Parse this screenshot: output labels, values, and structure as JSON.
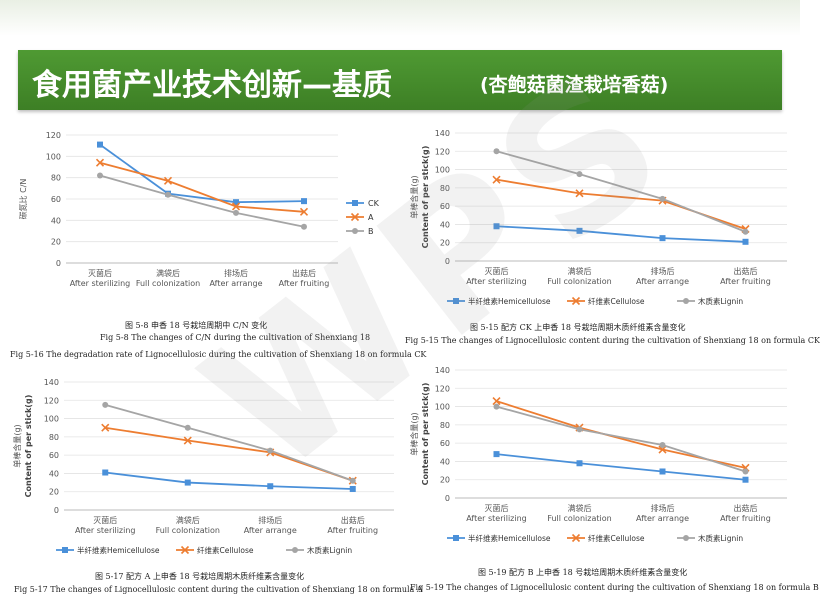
{
  "header": {
    "title_main": "食用菌产业技术创新—基质",
    "title_sub": "(杏鲍菇菌渣栽培香菇)"
  },
  "colors": {
    "banner": "#4a9230",
    "hemicellulose": "#4a90d9",
    "cellulose": "#ed7d31",
    "lignin": "#a5a5a5"
  },
  "watermark": "WPS",
  "chart_data": [
    {
      "id": "cn",
      "type": "line",
      "categories": [
        {
          "cn": "灭菌后",
          "en": "After sterilizing"
        },
        {
          "cn": "满袋后",
          "en": "Full colonization"
        },
        {
          "cn": "排场后",
          "en": "After arrange"
        },
        {
          "cn": "出菇后",
          "en": "After fruiting"
        }
      ],
      "ylabel": "碳氮比 C/N",
      "ylim": [
        0,
        120
      ],
      "yticks": [
        0,
        20,
        40,
        60,
        80,
        100,
        120
      ],
      "legend_position": "right",
      "series": [
        {
          "name": "CK",
          "color": "#4a90d9",
          "marker": "square",
          "values": [
            111,
            65,
            57,
            58
          ]
        },
        {
          "name": "A",
          "color": "#ed7d31",
          "marker": "x",
          "values": [
            94,
            77,
            53,
            48
          ]
        },
        {
          "name": "B",
          "color": "#a5a5a5",
          "marker": "circle",
          "values": [
            82,
            64,
            47,
            34
          ]
        }
      ],
      "caption_cn": "图 5-8 申香 18 号栽培周期中 C/N 变化",
      "caption_en": "Fig 5-8 The changes of C/N during the cultivation of Shenxiang 18",
      "caption_extra": "Fig 5-16 The degradation rate of Lignocellulosic during the cultivation of Shenxiang 18 on formula CK"
    },
    {
      "id": "ck",
      "type": "line",
      "categories": [
        {
          "cn": "灭菌后",
          "en": "After sterilizing"
        },
        {
          "cn": "满袋后",
          "en": "Full colonization"
        },
        {
          "cn": "排场后",
          "en": "After arrange"
        },
        {
          "cn": "出菇后",
          "en": "After fruiting"
        }
      ],
      "ylabel_cn": "单棒含量(g)",
      "ylabel_en": "Content of per stick(g)",
      "ylim": [
        0,
        140
      ],
      "yticks": [
        0,
        20,
        40,
        60,
        80,
        100,
        120,
        140
      ],
      "legend_position": "bottom",
      "series": [
        {
          "name": "半纤维素Hemicellulose",
          "color": "#4a90d9",
          "marker": "square",
          "values": [
            38,
            33,
            25,
            21
          ]
        },
        {
          "name": "纤维素Cellulose",
          "color": "#ed7d31",
          "marker": "x",
          "values": [
            89,
            74,
            66,
            35
          ]
        },
        {
          "name": "木质素Lignin",
          "color": "#a5a5a5",
          "marker": "circle",
          "values": [
            120,
            95,
            68,
            32
          ]
        }
      ],
      "caption_cn": "图 5-15 配方 CK 上申香 18 号栽培周期木质纤维素含量变化",
      "caption_en": "Fig 5-15 The changes of Lignocellulosic content during the cultivation of Shenxiang 18 on formula CK"
    },
    {
      "id": "a",
      "type": "line",
      "categories": [
        {
          "cn": "灭菌后",
          "en": "After sterilizing"
        },
        {
          "cn": "满袋后",
          "en": "Full colonization"
        },
        {
          "cn": "排场后",
          "en": "After arrange"
        },
        {
          "cn": "出菇后",
          "en": "After fruiting"
        }
      ],
      "ylabel_cn": "单棒含量(g)",
      "ylabel_en": "Content of per stick(g)",
      "ylim": [
        0,
        140
      ],
      "yticks": [
        0,
        20,
        40,
        60,
        80,
        100,
        120,
        140
      ],
      "legend_position": "bottom",
      "series": [
        {
          "name": "半纤维素Hemicellulose",
          "color": "#4a90d9",
          "marker": "square",
          "values": [
            41,
            30,
            26,
            23
          ]
        },
        {
          "name": "纤维素Cellulose",
          "color": "#ed7d31",
          "marker": "x",
          "values": [
            90,
            76,
            63,
            32
          ]
        },
        {
          "name": "木质素Lignin",
          "color": "#a5a5a5",
          "marker": "circle",
          "values": [
            115,
            90,
            65,
            32
          ]
        }
      ],
      "caption_cn": "图 5-17 配方 A 上申香 18 号栽培周期木质纤维素含量变化",
      "caption_en": "Fig 5-17 The changes of Lignocellulosic content during the cultivation of Shenxiang 18 on formula A"
    },
    {
      "id": "b",
      "type": "line",
      "categories": [
        {
          "cn": "灭菌后",
          "en": "After sterilizing"
        },
        {
          "cn": "满袋后",
          "en": "Full colonization"
        },
        {
          "cn": "排场后",
          "en": "After arrange"
        },
        {
          "cn": "出菇后",
          "en": "After fruiting"
        }
      ],
      "ylabel_cn": "单棒含量(g)",
      "ylabel_en": "Content of per stick(g)",
      "ylim": [
        0,
        140
      ],
      "yticks": [
        0,
        20,
        40,
        60,
        80,
        100,
        120,
        140
      ],
      "legend_position": "bottom",
      "series": [
        {
          "name": "半纤维素Hemicellulose",
          "color": "#4a90d9",
          "marker": "square",
          "values": [
            48,
            38,
            29,
            20
          ]
        },
        {
          "name": "纤维素Cellulose",
          "color": "#ed7d31",
          "marker": "x",
          "values": [
            106,
            77,
            53,
            33
          ]
        },
        {
          "name": "木质素Lignin",
          "color": "#a5a5a5",
          "marker": "circle",
          "values": [
            100,
            75,
            58,
            29
          ]
        }
      ],
      "caption_cn": "图 5-19 配方 B 上申香 18 号栽培周期木质纤维素含量变化",
      "caption_en": "Fig 5-19 The changes of Lignocellulosic content during the cultivation of Shenxiang 18 on formula B"
    }
  ]
}
